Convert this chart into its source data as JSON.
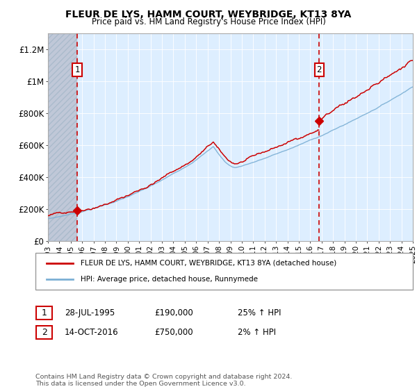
{
  "title": "FLEUR DE LYS, HAMM COURT, WEYBRIDGE, KT13 8YA",
  "subtitle": "Price paid vs. HM Land Registry's House Price Index (HPI)",
  "legend_line1": "FLEUR DE LYS, HAMM COURT, WEYBRIDGE, KT13 8YA (detached house)",
  "legend_line2": "HPI: Average price, detached house, Runnymede",
  "transaction1_date": "28-JUL-1995",
  "transaction1_price": "£190,000",
  "transaction1_hpi": "25% ↑ HPI",
  "transaction1_year": 1995.57,
  "transaction1_value": 190000,
  "transaction2_date": "14-OCT-2016",
  "transaction2_price": "£750,000",
  "transaction2_hpi": "2% ↑ HPI",
  "transaction2_year": 2016.79,
  "transaction2_value": 750000,
  "hpi_color": "#7bafd4",
  "price_color": "#cc0000",
  "dashed_line_color": "#cc0000",
  "chart_bg_color": "#ddeeff",
  "hatch_color": "#c0c8d8",
  "ylim": [
    0,
    1300000
  ],
  "xlim_start": 1993,
  "xlim_end": 2025,
  "yticks": [
    0,
    200000,
    400000,
    600000,
    800000,
    1000000,
    1200000
  ],
  "ytick_labels": [
    "£0",
    "£200K",
    "£400K",
    "£600K",
    "£800K",
    "£1M",
    "£1.2M"
  ],
  "xticks": [
    1993,
    1994,
    1995,
    1996,
    1997,
    1998,
    1999,
    2000,
    2001,
    2002,
    2003,
    2004,
    2005,
    2006,
    2007,
    2008,
    2009,
    2010,
    2011,
    2012,
    2013,
    2014,
    2015,
    2016,
    2017,
    2018,
    2019,
    2020,
    2021,
    2022,
    2023,
    2024,
    2025
  ],
  "footer": "Contains HM Land Registry data © Crown copyright and database right 2024.\nThis data is licensed under the Open Government Licence v3.0.",
  "grid_color": "#ffffff"
}
